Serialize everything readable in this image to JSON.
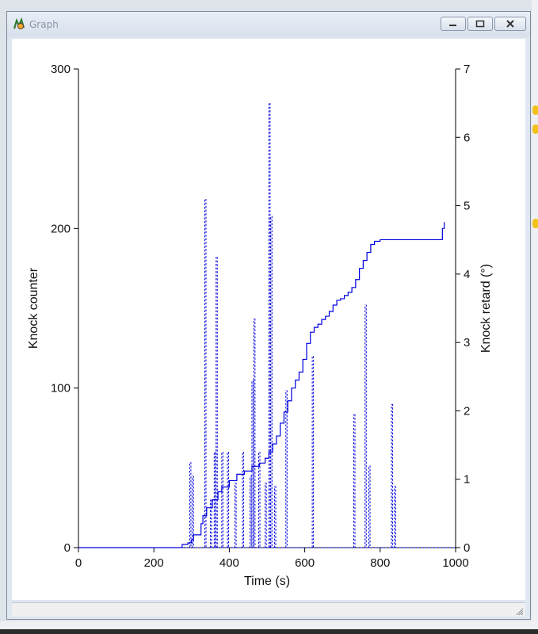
{
  "window": {
    "title": "Graph"
  },
  "chart_data": {
    "type": "line",
    "xlabel": "Time (s)",
    "ylabel_left": "Knock counter",
    "ylabel_right": "Knock retard (°)",
    "xlim": [
      0,
      1000
    ],
    "ylim_left": [
      0,
      300
    ],
    "ylim_right": [
      0,
      7
    ],
    "xticks": [
      "0",
      "200",
      "400",
      "600",
      "800",
      "1000"
    ],
    "yticks_left": [
      "0",
      "100",
      "200",
      "300"
    ],
    "yticks_right": [
      "0",
      "1",
      "2",
      "3",
      "4",
      "5",
      "6",
      "7"
    ],
    "grid": false,
    "series": [
      {
        "axis": "left",
        "style": "solid",
        "color": "#0000dd",
        "x": [
          0,
          255,
          275,
          290,
          300,
          305,
          325,
          330,
          340,
          355,
          370,
          380,
          400,
          420,
          440,
          460,
          480,
          495,
          505,
          515,
          525,
          535,
          545,
          555,
          565,
          575,
          585,
          595,
          605,
          615,
          625,
          635,
          645,
          655,
          665,
          675,
          685,
          695,
          705,
          715,
          725,
          735,
          745,
          755,
          765,
          775,
          785,
          800,
          900,
          965,
          965,
          970
        ],
        "y": [
          0,
          0,
          2,
          3,
          5,
          8,
          15,
          20,
          25,
          30,
          35,
          38,
          42,
          46,
          48,
          51,
          53,
          56,
          60,
          65,
          70,
          78,
          85,
          92,
          100,
          105,
          110,
          118,
          128,
          135,
          138,
          140,
          143,
          145,
          148,
          152,
          155,
          156,
          158,
          160,
          163,
          168,
          175,
          180,
          185,
          190,
          192,
          193,
          193,
          193,
          200,
          204
        ]
      },
      {
        "axis": "right",
        "style": "dashed",
        "color": "#0000dd",
        "spikes": [
          [
            295,
            1.25
          ],
          [
            302,
            1.05
          ],
          [
            335,
            5.1
          ],
          [
            350,
            0.7
          ],
          [
            360,
            1.4
          ],
          [
            365,
            4.25
          ],
          [
            380,
            1.4
          ],
          [
            395,
            1.4
          ],
          [
            415,
            0.95
          ],
          [
            435,
            1.4
          ],
          [
            455,
            1.05
          ],
          [
            460,
            2.45
          ],
          [
            465,
            3.35
          ],
          [
            478,
            1.4
          ],
          [
            495,
            0.95
          ],
          [
            505,
            6.5
          ],
          [
            510,
            4.85
          ],
          [
            520,
            0.9
          ],
          [
            550,
            2.3
          ],
          [
            620,
            2.8
          ],
          [
            730,
            1.95
          ],
          [
            760,
            3.55
          ],
          [
            770,
            1.2
          ],
          [
            830,
            2.1
          ],
          [
            838,
            0.9
          ]
        ]
      }
    ]
  }
}
